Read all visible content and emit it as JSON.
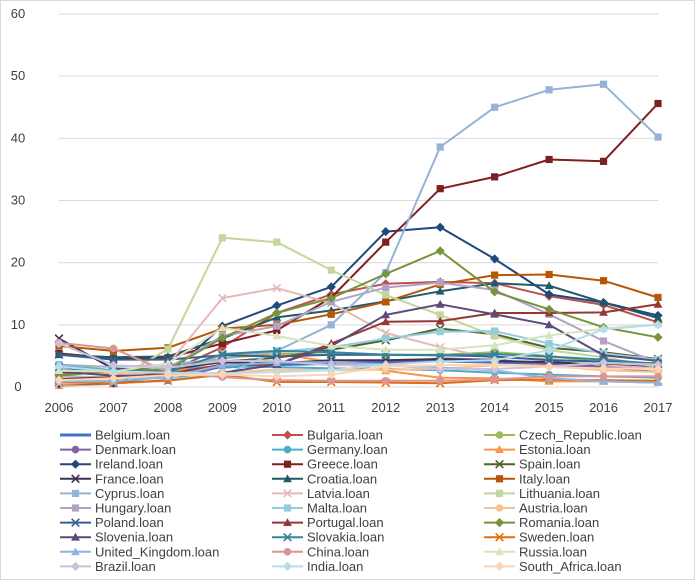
{
  "chart_data": {
    "type": "line",
    "x": [
      "2006",
      "2007",
      "2008",
      "2009",
      "2010",
      "2011",
      "2012",
      "2013",
      "2014",
      "2015",
      "2016",
      "2017"
    ],
    "ylim": [
      0,
      60
    ],
    "yticks": [
      0,
      10,
      20,
      30,
      40,
      50,
      60
    ],
    "grid": true,
    "legend_placement": "bottom",
    "series": [
      {
        "name": "Belgium.loan",
        "color": "#4472C4",
        "marker": "none",
        "values": [
          2.6,
          2.7,
          2.5,
          3.2,
          3.6,
          3.8,
          4.0,
          4.2,
          4.0,
          3.8,
          3.4,
          3.2
        ]
      },
      {
        "name": "Bulgaria.loan",
        "color": "#C0504D",
        "marker": "diamond",
        "values": [
          2.2,
          2.1,
          2.4,
          6.4,
          11.9,
          14.9,
          16.6,
          16.9,
          16.7,
          14.6,
          13.2,
          10.4
        ]
      },
      {
        "name": "Czech_Republic.loan",
        "color": "#9BBB59",
        "marker": "circle",
        "values": [
          3.6,
          2.7,
          2.8,
          4.6,
          5.4,
          5.2,
          5.2,
          5.2,
          5.6,
          5.0,
          3.9,
          3.6
        ]
      },
      {
        "name": "Denmark.loan",
        "color": "#8064A2",
        "marker": "circle",
        "values": [
          0.5,
          0.6,
          1.1,
          3.3,
          4.1,
          3.7,
          3.7,
          4.6,
          4.4,
          3.6,
          3.2,
          2.4
        ]
      },
      {
        "name": "Germany.loan",
        "color": "#4BACC6",
        "marker": "circle",
        "values": [
          3.4,
          2.6,
          2.9,
          3.3,
          3.2,
          3.0,
          2.9,
          2.7,
          2.3,
          2.0,
          1.7,
          1.5
        ]
      },
      {
        "name": "Estonia.loan",
        "color": "#F79646",
        "marker": "triangle",
        "values": [
          0.2,
          0.5,
          1.9,
          5.2,
          5.4,
          4.0,
          2.6,
          1.5,
          1.4,
          0.9,
          0.9,
          0.7
        ]
      },
      {
        "name": "Ireland.loan",
        "color": "#1F497D",
        "marker": "diamond",
        "values": [
          0.5,
          0.6,
          1.9,
          9.8,
          13.1,
          16.1,
          25.0,
          25.7,
          20.6,
          14.9,
          13.6,
          11.5
        ]
      },
      {
        "name": "Greece.loan",
        "color": "#7F2020",
        "marker": "square",
        "values": [
          5.4,
          4.6,
          4.7,
          7.0,
          9.1,
          14.4,
          23.3,
          31.9,
          33.8,
          36.6,
          36.3,
          45.6
        ]
      },
      {
        "name": "Spain.loan",
        "color": "#4F6228",
        "marker": "x",
        "values": [
          0.7,
          0.9,
          2.8,
          4.1,
          4.7,
          6.0,
          7.5,
          9.4,
          8.5,
          6.3,
          5.6,
          4.5
        ]
      },
      {
        "name": "France.loan",
        "color": "#403151",
        "marker": "x",
        "values": [
          7.8,
          2.9,
          2.8,
          4.0,
          3.8,
          4.3,
          4.3,
          4.5,
          4.2,
          4.0,
          3.6,
          3.1
        ]
      },
      {
        "name": "Croatia.loan",
        "color": "#215968",
        "marker": "triangle",
        "values": [
          5.2,
          4.8,
          4.9,
          7.8,
          11.2,
          12.3,
          13.8,
          15.4,
          16.7,
          16.3,
          13.6,
          11.1
        ]
      },
      {
        "name": "Italy.loan",
        "color": "#B65708",
        "marker": "square",
        "values": [
          6.6,
          5.8,
          6.3,
          9.4,
          10.0,
          11.7,
          13.7,
          16.5,
          18.0,
          18.1,
          17.1,
          14.4
        ]
      },
      {
        "name": "Cyprus.loan",
        "color": "#95B3D7",
        "marker": "square",
        "values": [
          3.6,
          3.2,
          3.6,
          4.5,
          5.8,
          10.0,
          18.4,
          38.6,
          45.0,
          47.8,
          48.7,
          40.2
        ]
      },
      {
        "name": "Latvia.loan",
        "color": "#E6B9B8",
        "marker": "x",
        "values": [
          0.5,
          0.8,
          3.6,
          14.3,
          15.9,
          13.5,
          8.7,
          6.4,
          4.6,
          4.6,
          3.5,
          3.0
        ]
      },
      {
        "name": "Lithuania.loan",
        "color": "#C3D69B",
        "marker": "square",
        "values": [
          1.0,
          1.0,
          6.1,
          24.0,
          23.3,
          18.8,
          14.8,
          11.6,
          8.2,
          5.9,
          4.8,
          3.2
        ]
      },
      {
        "name": "Hungary.loan",
        "color": "#B3A2C7",
        "marker": "square",
        "values": [
          2.6,
          2.3,
          3.0,
          8.2,
          9.8,
          13.7,
          16.0,
          16.8,
          15.6,
          11.7,
          7.4,
          3.9
        ]
      },
      {
        "name": "Malta.loan",
        "color": "#93CDDD",
        "marker": "square",
        "values": [
          1.8,
          1.5,
          1.4,
          1.8,
          5.7,
          6.4,
          7.8,
          8.9,
          9.0,
          7.0,
          5.4,
          4.4
        ]
      },
      {
        "name": "Austria.loan",
        "color": "#FAC090",
        "marker": "circle",
        "values": [
          2.7,
          2.2,
          1.9,
          2.3,
          2.8,
          2.7,
          2.8,
          2.9,
          3.5,
          3.4,
          2.7,
          2.4
        ]
      },
      {
        "name": "Poland.loan",
        "color": "#376092",
        "marker": "x",
        "values": [
          5.2,
          4.4,
          4.4,
          5.1,
          4.9,
          5.2,
          5.2,
          5.1,
          4.9,
          4.3,
          4.1,
          3.8
        ]
      },
      {
        "name": "Portugal.loan",
        "color": "#953735",
        "marker": "triangle",
        "values": [
          1.3,
          1.6,
          2.1,
          3.6,
          3.6,
          7.0,
          10.5,
          10.6,
          11.9,
          11.9,
          12.0,
          13.3
        ]
      },
      {
        "name": "Romania.loan",
        "color": "#77933C",
        "marker": "diamond",
        "values": [
          1.8,
          2.6,
          2.8,
          7.9,
          11.9,
          14.3,
          18.2,
          21.9,
          15.3,
          12.5,
          9.6,
          8.0
        ]
      },
      {
        "name": "Slovenia.loan",
        "color": "#5F497A",
        "marker": "triangle",
        "values": [
          2.5,
          1.8,
          1.8,
          2.3,
          3.6,
          6.6,
          11.6,
          13.3,
          11.7,
          10.0,
          5.1,
          4.2
        ]
      },
      {
        "name": "Slovakia.loan",
        "color": "#31859C",
        "marker": "x",
        "values": [
          3.2,
          2.5,
          2.5,
          5.3,
          5.8,
          5.6,
          5.2,
          5.1,
          5.3,
          4.9,
          4.4,
          3.7
        ]
      },
      {
        "name": "Sweden.loan",
        "color": "#E46C0A",
        "marker": "x",
        "values": [
          0.8,
          0.6,
          1.0,
          2.0,
          0.8,
          0.8,
          0.7,
          0.6,
          1.1,
          1.2,
          1.1,
          1.0
        ]
      },
      {
        "name": "United_Kingdom.loan",
        "color": "#8EB4E3",
        "marker": "triangle",
        "values": [
          0.9,
          0.9,
          1.6,
          3.5,
          3.9,
          4.0,
          3.6,
          3.1,
          2.7,
          1.4,
          0.9,
          0.7
        ]
      },
      {
        "name": "China.loan",
        "color": "#DA9694",
        "marker": "circle",
        "values": [
          7.1,
          6.2,
          2.4,
          1.6,
          1.1,
          1.0,
          1.0,
          1.0,
          1.2,
          1.7,
          1.7,
          1.7
        ]
      },
      {
        "name": "Russia.loan",
        "color": "#D7E4BC",
        "marker": "triangle",
        "values": [
          2.6,
          2.5,
          3.8,
          9.5,
          8.2,
          6.6,
          6.0,
          6.0,
          6.7,
          8.3,
          9.4,
          10.1
        ]
      },
      {
        "name": "Brazil.loan",
        "color": "#CCC1DA",
        "marker": "diamond",
        "values": [
          7.0,
          3.5,
          3.1,
          4.2,
          4.2,
          3.5,
          3.5,
          2.9,
          2.9,
          3.3,
          3.9,
          3.6
        ]
      },
      {
        "name": "India.loan",
        "color": "#B7DEE8",
        "marker": "diamond",
        "values": [
          3.3,
          2.5,
          2.3,
          2.2,
          2.4,
          2.7,
          3.6,
          4.1,
          4.3,
          5.9,
          9.3,
          10.0
        ]
      },
      {
        "name": "South_Africa.loan",
        "color": "#FCD5B5",
        "marker": "diamond",
        "values": [
          1.1,
          1.4,
          1.9,
          2.0,
          1.7,
          2.0,
          3.3,
          3.5,
          3.6,
          3.2,
          3.0,
          2.9
        ]
      }
    ]
  }
}
